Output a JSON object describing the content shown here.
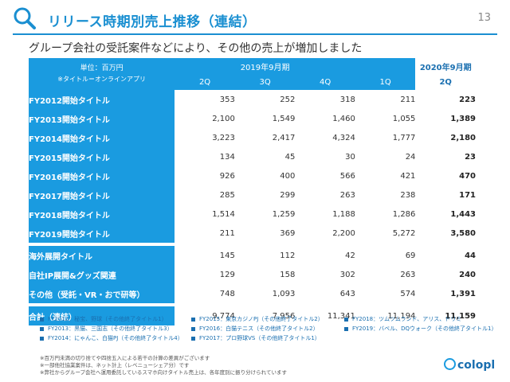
{
  "header": {
    "title": "リリース時期別売上推移（連結）",
    "page_number": "13"
  },
  "subtitle": "グループ会社の受託案件などにより、その他の売上が増加しました",
  "table": {
    "unit": "単位：百万円",
    "unit_note": "※タイトル＝オンラインアプリ",
    "year_2019": "2019年9月期",
    "year_2020": "2020年9月期",
    "quarters": [
      "2Q",
      "3Q",
      "4Q",
      "1Q",
      "2Q"
    ],
    "rows": [
      {
        "label": "FY2012開始タイトル",
        "values": [
          "353",
          "252",
          "318",
          "211",
          "223"
        ]
      },
      {
        "label": "FY2013開始タイトル",
        "values": [
          "2,100",
          "1,549",
          "1,460",
          "1,055",
          "1,389"
        ]
      },
      {
        "label": "FY2014開始タイトル",
        "values": [
          "3,223",
          "2,417",
          "4,324",
          "1,777",
          "2,180"
        ]
      },
      {
        "label": "FY2015開始タイトル",
        "values": [
          "134",
          "45",
          "30",
          "24",
          "23"
        ]
      },
      {
        "label": "FY2016開始タイトル",
        "values": [
          "926",
          "400",
          "566",
          "421",
          "470"
        ]
      },
      {
        "label": "FY2017開始タイトル",
        "values": [
          "285",
          "299",
          "263",
          "238",
          "171"
        ]
      },
      {
        "label": "FY2018開始タイトル",
        "values": [
          "1,514",
          "1,259",
          "1,188",
          "1,286",
          "1,443"
        ]
      },
      {
        "label": "FY2019開始タイトル",
        "values": [
          "211",
          "369",
          "2,200",
          "5,272",
          "3,580"
        ]
      },
      {
        "label": "海外展開タイトル",
        "values": [
          "145",
          "112",
          "42",
          "69",
          "44"
        ]
      },
      {
        "label": "自社IP展開&グッズ関連",
        "values": [
          "129",
          "158",
          "302",
          "263",
          "240"
        ]
      },
      {
        "label": "その他（受託・VR・おで研等）",
        "values": [
          "748",
          "1,093",
          "643",
          "574",
          "1,391"
        ]
      },
      {
        "label": "合計（連結）",
        "values": [
          "9,774",
          "7,956",
          "11,341",
          "11,194",
          "11,159"
        ]
      }
    ]
  },
  "legend": {
    "col1": [
      "FY2012：秘宝、野球（その他終了タイトル1）",
      "FY2013：黒猫、三国志（その他終了タイトル3）",
      "FY2014：にゃんこ、白猫PJ（その他終了タイトル4）"
    ],
    "col2": [
      "FY2015：東京カジノPJ（その他終了タイトル2）",
      "FY2016：白猫テニス（その他終了タイトル2）",
      "FY2017：プロ野球VS（その他終了タイトル1）"
    ],
    "col3": [
      "FY2018：ツムツムランド、アリス、ドリミ",
      "FY2019：バベル、DQウォーク（その他終了タイトル1）"
    ]
  },
  "footnotes": [
    "※百万円未満の切り捨てや四捨五入による若干の計算の差異がございます",
    "※一部他社協業案件は、ネット計上（レベニューシェア分）です",
    "※弊社からグループ会社へ運用委託しているスマホ向けタイトル売上は、各年度別に振り分けられています"
  ],
  "logo": {
    "text": "colopl",
    "icon": "colopl-logo-icon"
  },
  "colors": {
    "accent": "#1a9be0",
    "brand": "#1a6fb0"
  }
}
